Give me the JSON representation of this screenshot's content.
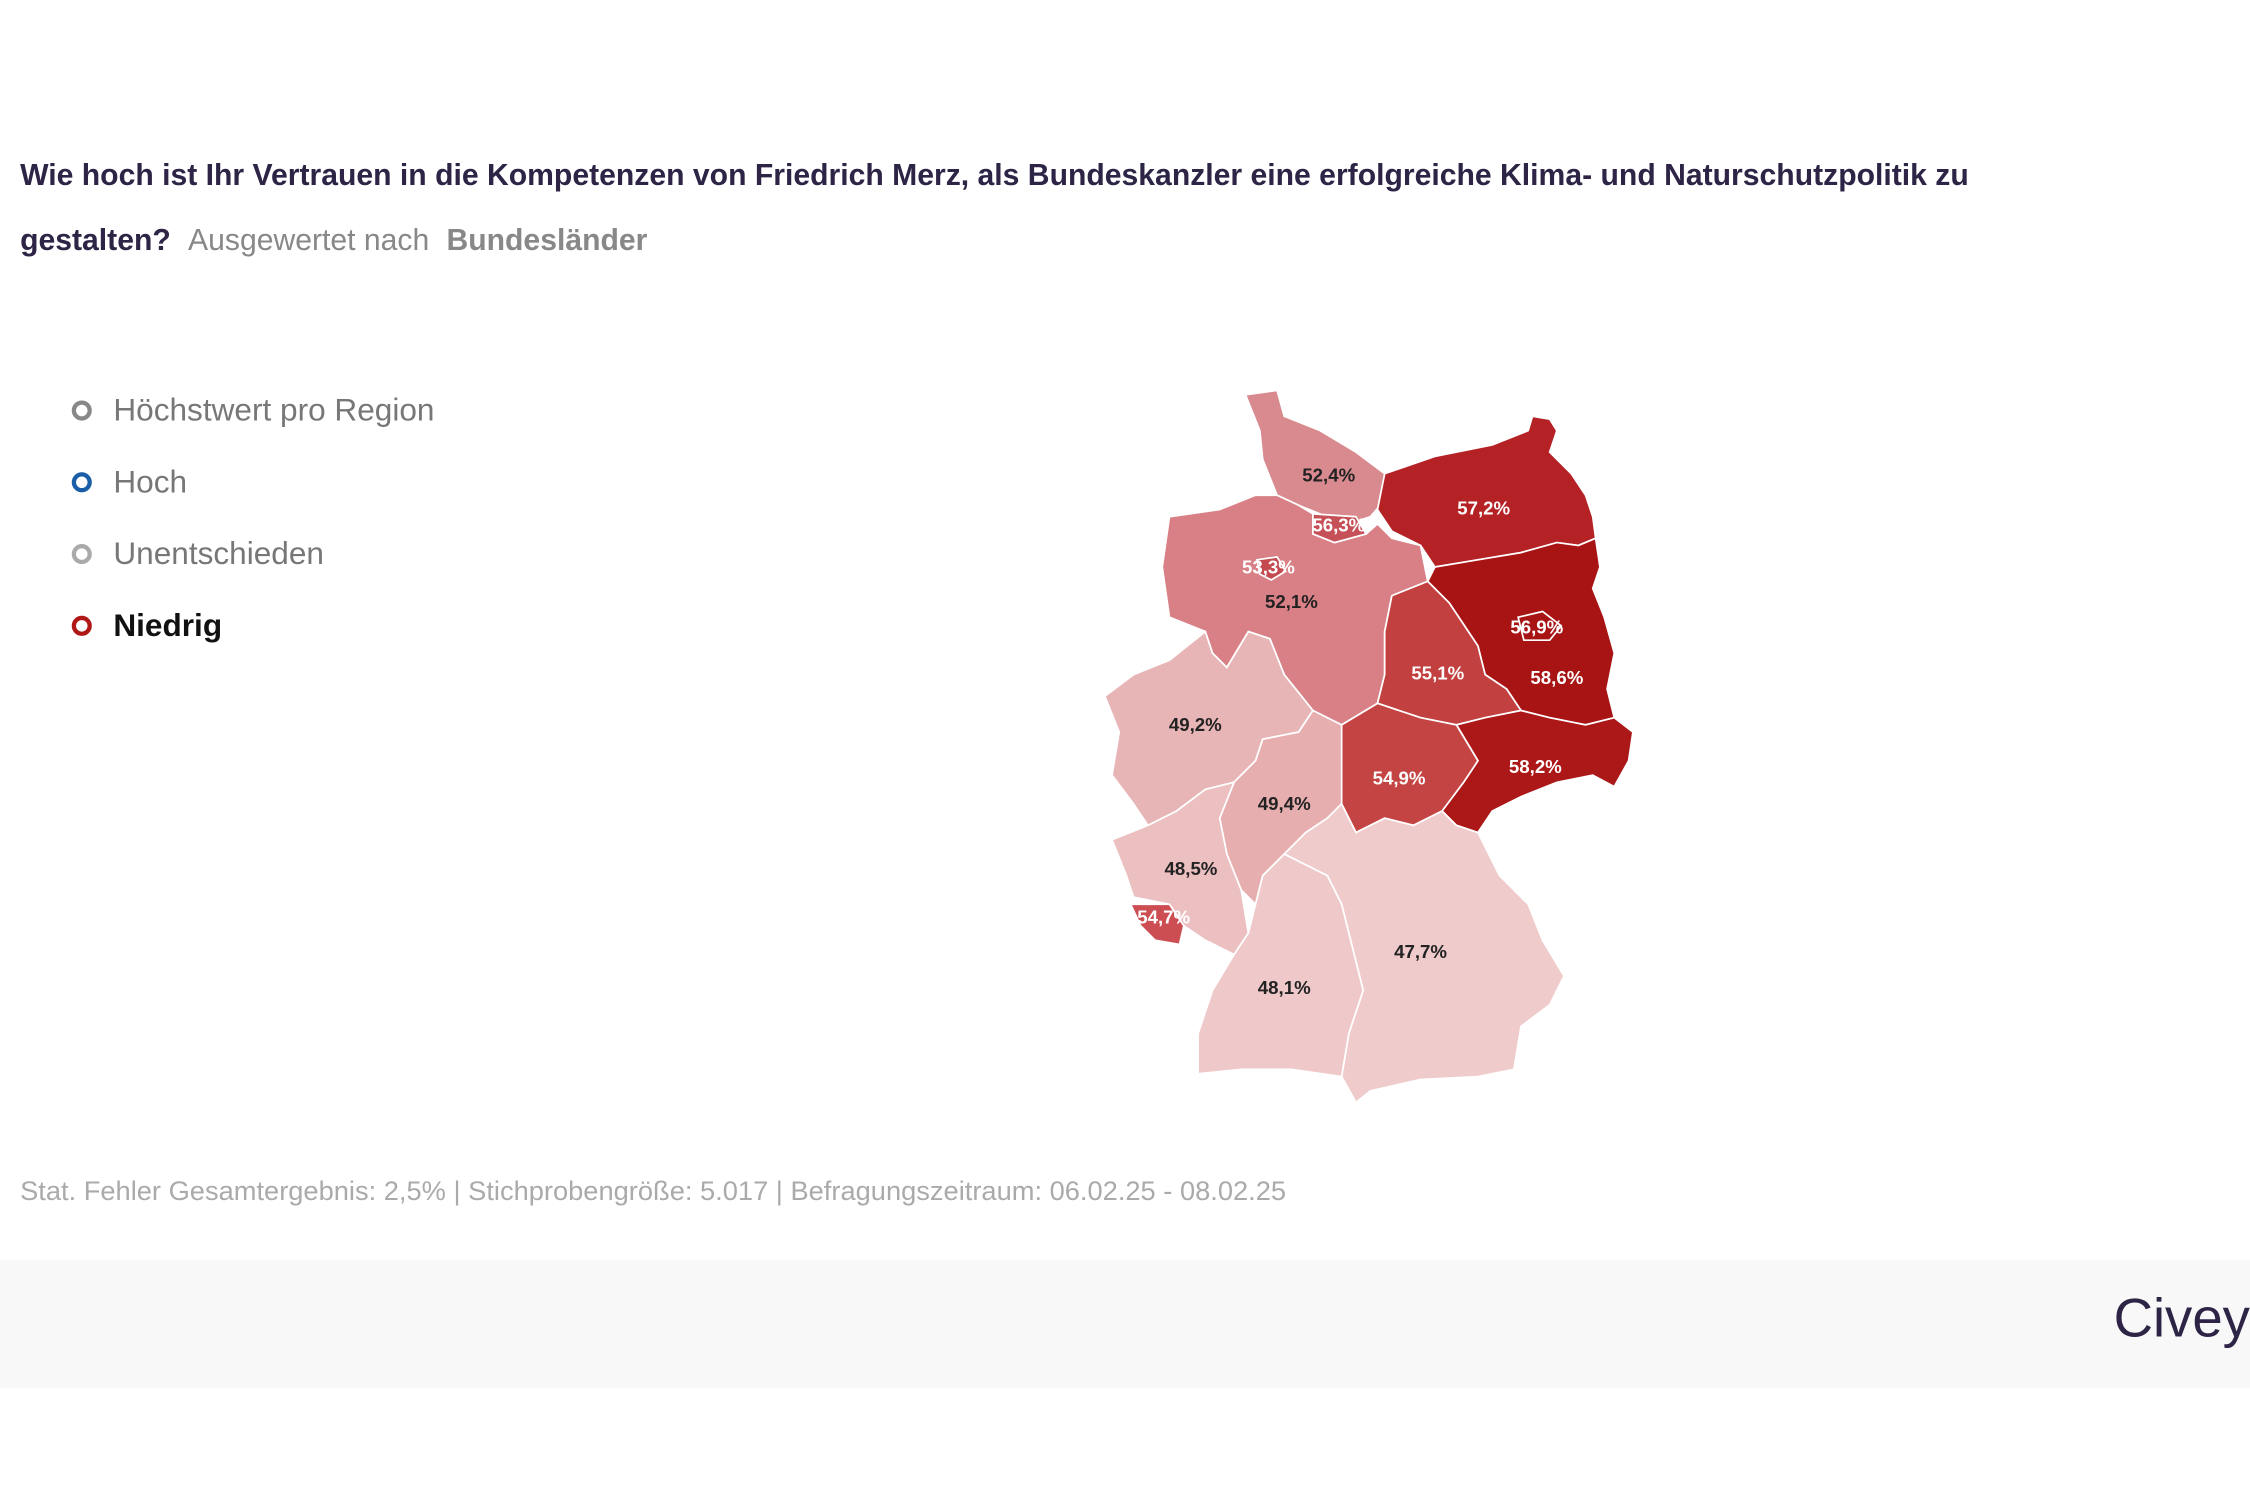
{
  "header": {
    "title": "Wie hoch ist Ihr Vertrauen in die Kompetenzen von Friedrich Merz, als Bundeskanzler eine erfolgreiche Klima- und Naturschutzpolitik zu gestalten?",
    "subtitle": "Ausgewertet nach",
    "grouping": "Bundesländer"
  },
  "legend": {
    "items": [
      {
        "label": "Höchstwert pro Region",
        "color": "#888888"
      },
      {
        "label": "Hoch",
        "color": "#1a5ea8"
      },
      {
        "label": "Unentschieden",
        "color": "#aaaaaa"
      },
      {
        "label": "Niedrig",
        "color": "#b01818"
      }
    ],
    "selected": 3
  },
  "chart_data": {
    "type": "choropleth",
    "values": [
      52.4,
      56.3,
      57.2,
      53.3,
      52.1,
      56.9,
      58.6,
      55.1,
      58.2,
      54.9,
      49.2,
      49.4,
      48.5,
      54.7,
      47.7,
      48.1
    ],
    "value_labels": [
      "52,4%",
      "56,3%",
      "57,2%",
      "53,3%",
      "52,1%",
      "56,9%",
      "58,6%",
      "55,1%",
      "58,2%",
      "54,9%",
      "49,2%",
      "49,4%",
      "48,5%",
      "54,7%",
      "47,7%",
      "48,1%"
    ],
    "colors": [
      "#d98a8e",
      "#c55057",
      "#b52226",
      "#c44a50",
      "#d88085",
      "#a81414",
      "#a81414",
      "#c24040",
      "#ac1818",
      "#c44444",
      "#e8b5b7",
      "#e7aeb0",
      "#ecbfc1",
      "#cc4e52",
      "#f0cbcb",
      "#efc9ca"
    ]
  },
  "footer": {
    "note": "Stat. Fehler Gesamtergebnis: 2,5% | Stichprobengröße: 5.017 | Befragungszeitraum: 06.02.25 - 08.02.25",
    "brand": "Civey"
  }
}
